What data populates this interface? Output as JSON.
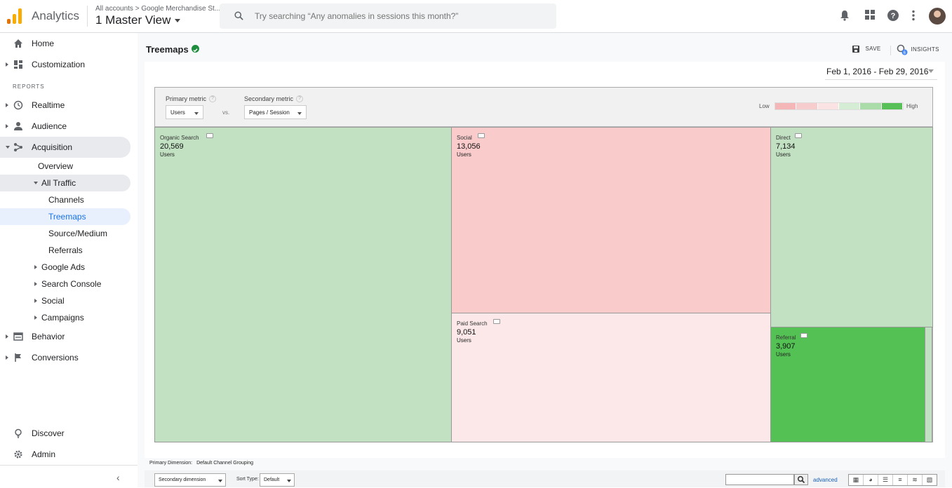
{
  "header": {
    "app_title": "Analytics",
    "account_crumb": "All accounts > Google Merchandise St...",
    "view_name": "1 Master View",
    "search_placeholder": "Try searching “Any anomalies in sessions this month?”"
  },
  "sidebar": {
    "home": "Home",
    "customization": "Customization",
    "reports_heading": "REPORTS",
    "realtime": "Realtime",
    "audience": "Audience",
    "acquisition": "Acquisition",
    "overview": "Overview",
    "all_traffic": "All Traffic",
    "channels": "Channels",
    "treemaps": "Treemaps",
    "source_medium": "Source/Medium",
    "referrals": "Referrals",
    "google_ads": "Google Ads",
    "search_console": "Search Console",
    "social": "Social",
    "campaigns": "Campaigns",
    "behavior": "Behavior",
    "conversions": "Conversions",
    "discover": "Discover",
    "admin": "Admin"
  },
  "page": {
    "title": "Treemaps",
    "save_label": "SAVE",
    "insights_label": "INSIGHTS",
    "date_range": "Feb 1, 2016 - Feb 29, 2016"
  },
  "treemap": {
    "primary_metric_label": "Primary metric",
    "primary_metric_value": "Users",
    "vs_label": "vs.",
    "secondary_metric_label": "Secondary metric",
    "secondary_metric_value": "Pages / Session",
    "legend_low": "Low",
    "legend_high": "High",
    "legend_colors": [
      "#f4b6b6",
      "#f7cccc",
      "#fbe3e3",
      "#d5ecd5",
      "#a9dca9",
      "#57c157"
    ],
    "cells": [
      {
        "label": "Organic Search",
        "value": "20,569",
        "unit": "Users",
        "color": "#c2e1c2"
      },
      {
        "label": "Social",
        "value": "13,056",
        "unit": "Users",
        "color": "#f9cbcb"
      },
      {
        "label": "Paid Search",
        "value": "9,051",
        "unit": "Users",
        "color": "#fce8e8"
      },
      {
        "label": "Direct",
        "value": "7,134",
        "unit": "Users",
        "color": "#c2e1c2"
      },
      {
        "label": "Referral",
        "value": "3,907",
        "unit": "Users",
        "color": "#53c153"
      }
    ]
  },
  "footer": {
    "primary_dimension_label": "Primary Dimension:",
    "primary_dimension_value": "Default Channel Grouping",
    "secondary_dimension": "Secondary dimension",
    "sort_type_label": "Sort Type:",
    "sort_type_value": "Default",
    "advanced_link": "advanced"
  }
}
